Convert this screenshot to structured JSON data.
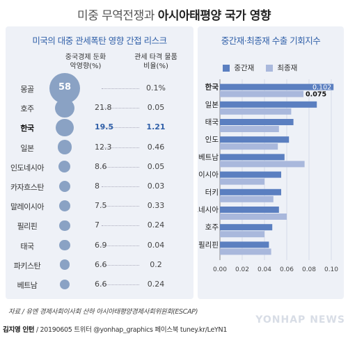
{
  "title": {
    "light": "미중 무역전쟁과",
    "bold": "아시아태평양 국가 영향"
  },
  "left": {
    "panel_title": "미국의 대중 관세폭탄 영향 간접 리스크",
    "col1_header": [
      "중국경제 둔화",
      "악영향(%)"
    ],
    "col2_header": [
      "관세 타격 물품",
      "비율(%)"
    ],
    "rows": [
      {
        "country": "몽골",
        "impact": "58",
        "ratio": "0.1%",
        "value": 58,
        "hl": false
      },
      {
        "country": "호주",
        "impact": "21.8",
        "ratio": "0.05",
        "value": 21.8,
        "hl": false
      },
      {
        "country": "한국",
        "impact": "19.5",
        "ratio": "1.21",
        "value": 19.5,
        "hl": true
      },
      {
        "country": "일본",
        "impact": "12.3",
        "ratio": "0.46",
        "value": 12.3,
        "hl": false
      },
      {
        "country": "인도네시아",
        "impact": "8.6",
        "ratio": "0.05",
        "value": 8.6,
        "hl": false
      },
      {
        "country": "카자흐스탄",
        "impact": "8",
        "ratio": "0.03",
        "value": 8,
        "hl": false
      },
      {
        "country": "말레이시아",
        "impact": "7.5",
        "ratio": "0.33",
        "value": 7.5,
        "hl": false
      },
      {
        "country": "필리핀",
        "impact": "7",
        "ratio": "0.24",
        "value": 7,
        "hl": false
      },
      {
        "country": "태국",
        "impact": "6.9",
        "ratio": "0.04",
        "value": 6.9,
        "hl": false
      },
      {
        "country": "파키스탄",
        "impact": "6.6",
        "ratio": "0.2",
        "value": 6.6,
        "hl": false
      },
      {
        "country": "베트남",
        "impact": "6.6",
        "ratio": "0.24",
        "value": 6.6,
        "hl": false
      }
    ]
  },
  "chart_data": {
    "type": "bar",
    "orientation": "horizontal",
    "title": "중간재·최종재 수출 기회지수",
    "categories": [
      "한국",
      "일본",
      "태국",
      "인도",
      "베트남",
      "말레이시아",
      "터키",
      "인도네시아",
      "호주",
      "필리핀"
    ],
    "series": [
      {
        "name": "중간재",
        "color": "#5b7fc0",
        "values": [
          0.102,
          0.087,
          0.066,
          0.062,
          0.058,
          0.055,
          0.055,
          0.053,
          0.047,
          0.044
        ]
      },
      {
        "name": "최종재",
        "color": "#a9b8dc",
        "values": [
          0.075,
          0.064,
          0.053,
          0.052,
          0.076,
          0.04,
          0.048,
          0.06,
          0.04,
          0.046
        ]
      }
    ],
    "data_labels": {
      "한국": [
        "0.102",
        "0.075"
      ]
    },
    "xlim": [
      0,
      0.1
    ],
    "xticks": [
      "0.00",
      "0.02",
      "0.04",
      "0.06",
      "0.08",
      "0.10"
    ],
    "legend": "top"
  },
  "source": "자료 / 유엔 경제사회이사회 산하 아시아태평양경제사회위원회(ESCAP)",
  "credit": {
    "author": "김지영 인턴",
    "rest": " / 20190605 트위터 @yonhap_graphics  페이스북 tuney.kr/LeYN1"
  },
  "watermark": "YONHAP NEWS"
}
